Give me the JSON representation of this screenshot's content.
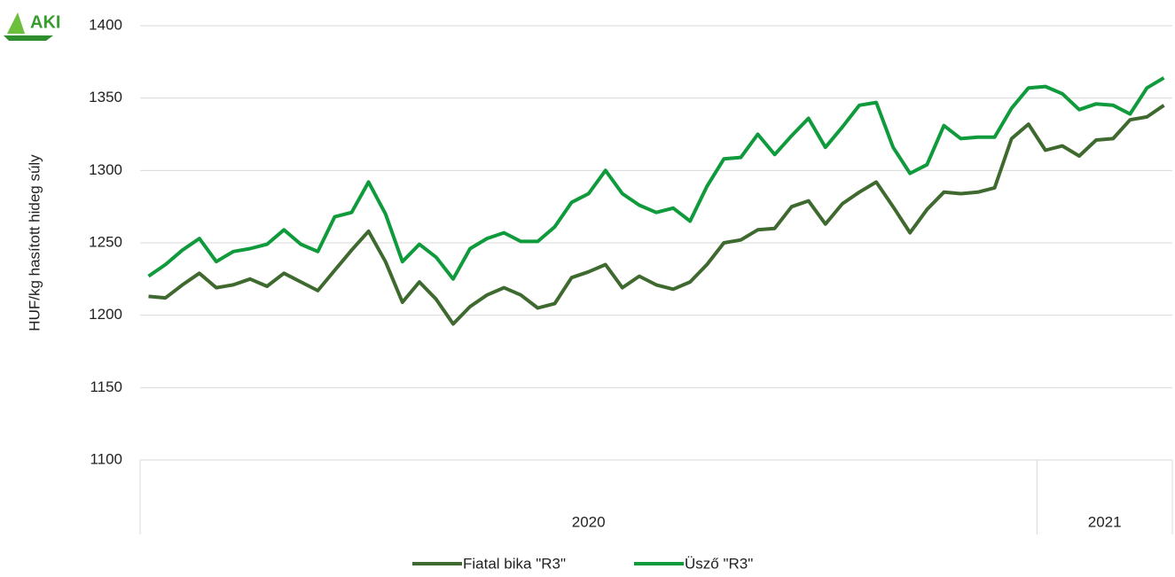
{
  "chart_data": {
    "type": "line",
    "logo": "AKI",
    "y_label": "HUF/kg hasított hideg súly",
    "categories": [
      null,
      null,
      null,
      null,
      null,
      null,
      null,
      null,
      null,
      null,
      null,
      null,
      null,
      null,
      null,
      null,
      null,
      null,
      null,
      null,
      null,
      null,
      null,
      null,
      null,
      null,
      null,
      null,
      null,
      null,
      null,
      null,
      null,
      null,
      null,
      null,
      null,
      null,
      null,
      null,
      null,
      null,
      null,
      null,
      null,
      null,
      null,
      null,
      null,
      null,
      null,
      null,
      null,
      null,
      null,
      null,
      null,
      null,
      null,
      null,
      null
    ],
    "groups": [
      {
        "label": "2020",
        "count": 53
      },
      {
        "label": "2021",
        "count": 8
      }
    ],
    "series": [
      {
        "name": "Fiatal bika \"R3\"",
        "color": "#3f6a2f",
        "values": [
          1213,
          1212,
          1221,
          1229,
          1219,
          1221,
          1225,
          1220,
          1229,
          1223,
          1217,
          1231,
          1245,
          1258,
          1237,
          1209,
          1223,
          1211,
          1194,
          1206,
          1214,
          1219,
          1214,
          1205,
          1208,
          1226,
          1230,
          1235,
          1219,
          1227,
          1221,
          1218,
          1223,
          1235,
          1250,
          1252,
          1259,
          1260,
          1275,
          1279,
          1263,
          1277,
          1285,
          1292,
          1275,
          1257,
          1273,
          1285,
          1284,
          1285,
          1288,
          1322,
          1332,
          1314,
          1317,
          1310,
          1321,
          1322,
          1335,
          1337,
          1345
        ]
      },
      {
        "name": "Üsző \"R3\"",
        "color": "#0f9a3c",
        "values": [
          1227,
          1235,
          1245,
          1253,
          1237,
          1244,
          1246,
          1249,
          1259,
          1249,
          1244,
          1268,
          1271,
          1292,
          1270,
          1237,
          1249,
          1240,
          1225,
          1246,
          1253,
          1257,
          1251,
          1251,
          1261,
          1278,
          1284,
          1300,
          1284,
          1276,
          1271,
          1274,
          1265,
          1289,
          1308,
          1309,
          1325,
          1311,
          1324,
          1336,
          1316,
          1330,
          1345,
          1347,
          1316,
          1298,
          1304,
          1331,
          1322,
          1323,
          1323,
          1343,
          1357,
          1358,
          1353,
          1342,
          1346,
          1345,
          1339,
          1357,
          1364
        ]
      }
    ],
    "ylim": [
      1100,
      1400
    ],
    "yticks": [
      1100,
      1150,
      1200,
      1250,
      1300,
      1350,
      1400
    ],
    "grid": true,
    "legend": "bottom"
  }
}
